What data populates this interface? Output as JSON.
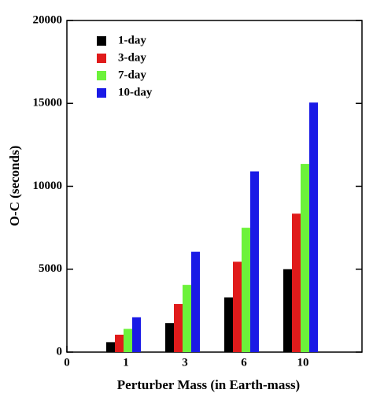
{
  "chart_data": {
    "type": "bar",
    "xlabel": "Perturber Mass (in Earth-mass)",
    "ylabel": "O-C (seconds)",
    "x": [
      1,
      2,
      3,
      4
    ],
    "xlim": [
      0,
      5
    ],
    "xticks": [
      0,
      1,
      {
        "value": 2,
        "label": "3"
      },
      {
        "value": 3,
        "label": "6"
      },
      {
        "value": 4,
        "label": "10"
      }
    ],
    "ylim": [
      0,
      20000
    ],
    "yticks": [
      0,
      5000,
      10000,
      15000,
      20000
    ],
    "legend": "top-left",
    "series": [
      {
        "name": "1-day",
        "color": "#000000",
        "values": [
          600,
          1750,
          3300,
          5000
        ]
      },
      {
        "name": "3-day",
        "color": "#e01b1b",
        "values": [
          1050,
          2900,
          5450,
          8350
        ]
      },
      {
        "name": "7-day",
        "color": "#6cf23a",
        "values": [
          1400,
          4050,
          7500,
          11350
        ]
      },
      {
        "name": "10-day",
        "color": "#1a1ae6",
        "values": [
          2100,
          6050,
          10900,
          15050
        ]
      }
    ]
  }
}
